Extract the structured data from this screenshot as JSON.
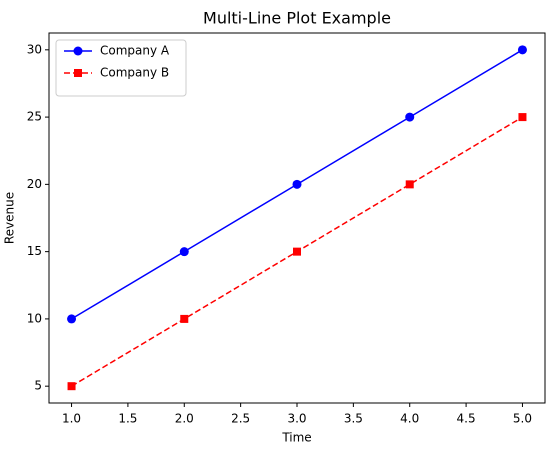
{
  "chart_data": {
    "type": "line",
    "title": "Multi-Line Plot Example",
    "xlabel": "Time",
    "ylabel": "Revenue",
    "x": [
      1,
      2,
      3,
      4,
      5
    ],
    "series": [
      {
        "name": "Company A",
        "color": "#0000ff",
        "marker": "circle",
        "linestyle": "solid",
        "values": [
          10,
          15,
          20,
          25,
          30
        ]
      },
      {
        "name": "Company B",
        "color": "#ff0000",
        "marker": "square",
        "linestyle": "dashed",
        "values": [
          5,
          10,
          15,
          20,
          25
        ]
      }
    ],
    "xlim": [
      0.8,
      5.2
    ],
    "xticks": [
      {
        "value": 1,
        "label": "1.0"
      },
      {
        "value": 1.5,
        "label": "1.5"
      },
      {
        "value": 2,
        "label": "2.0"
      },
      {
        "value": 2.5,
        "label": "2.5"
      },
      {
        "value": 3,
        "label": "3.0"
      },
      {
        "value": 3.5,
        "label": "3.5"
      },
      {
        "value": 4,
        "label": "4.0"
      },
      {
        "value": 4.5,
        "label": "4.5"
      },
      {
        "value": 5,
        "label": "5.0"
      }
    ],
    "ylim": [
      3.75,
      31.25
    ],
    "yticks": [
      5,
      10,
      15,
      20,
      25,
      30
    ],
    "legend": "upper-left"
  }
}
